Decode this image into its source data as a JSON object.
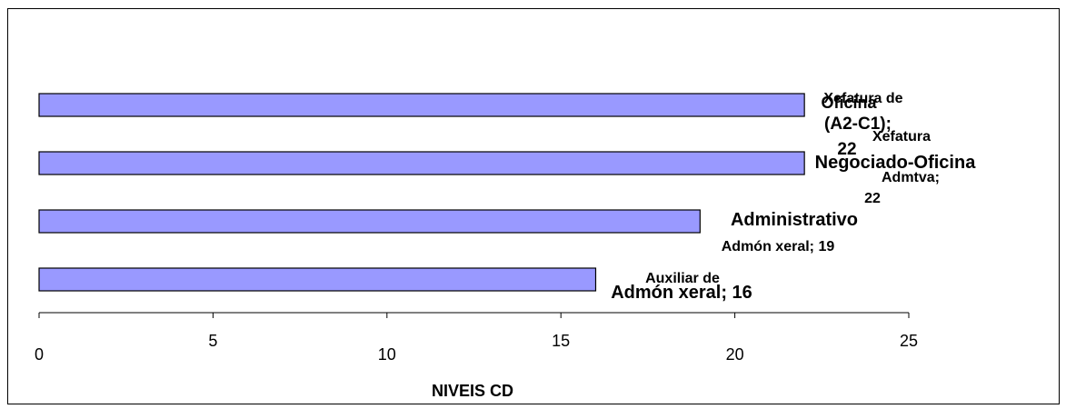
{
  "chart_data": {
    "type": "bar",
    "orientation": "horizontal",
    "categories": [
      "Xefatura de Oficina (A2-C1)",
      "Xefatura Negociado-Oficina Admtva",
      "Administrativo Admón xeral",
      "Auxiliar de Admón xeral"
    ],
    "values": [
      22,
      22,
      19,
      16
    ],
    "data_labels": [
      "Xefatura de Oficina (A2-C1); 22",
      "Xefatura Negociado-Oficina Admtva; 22",
      "Administrativo Admón xeral; 19",
      "Auxiliar de Admón xeral; 16"
    ],
    "xlabel": "NIVEIS CD",
    "ylabel": "",
    "xlim": [
      0,
      25
    ],
    "xticks": [
      "0",
      "5",
      "10",
      "15",
      "20",
      "25"
    ],
    "grid": false,
    "legend": "none",
    "bar_color": "#9999FF"
  }
}
